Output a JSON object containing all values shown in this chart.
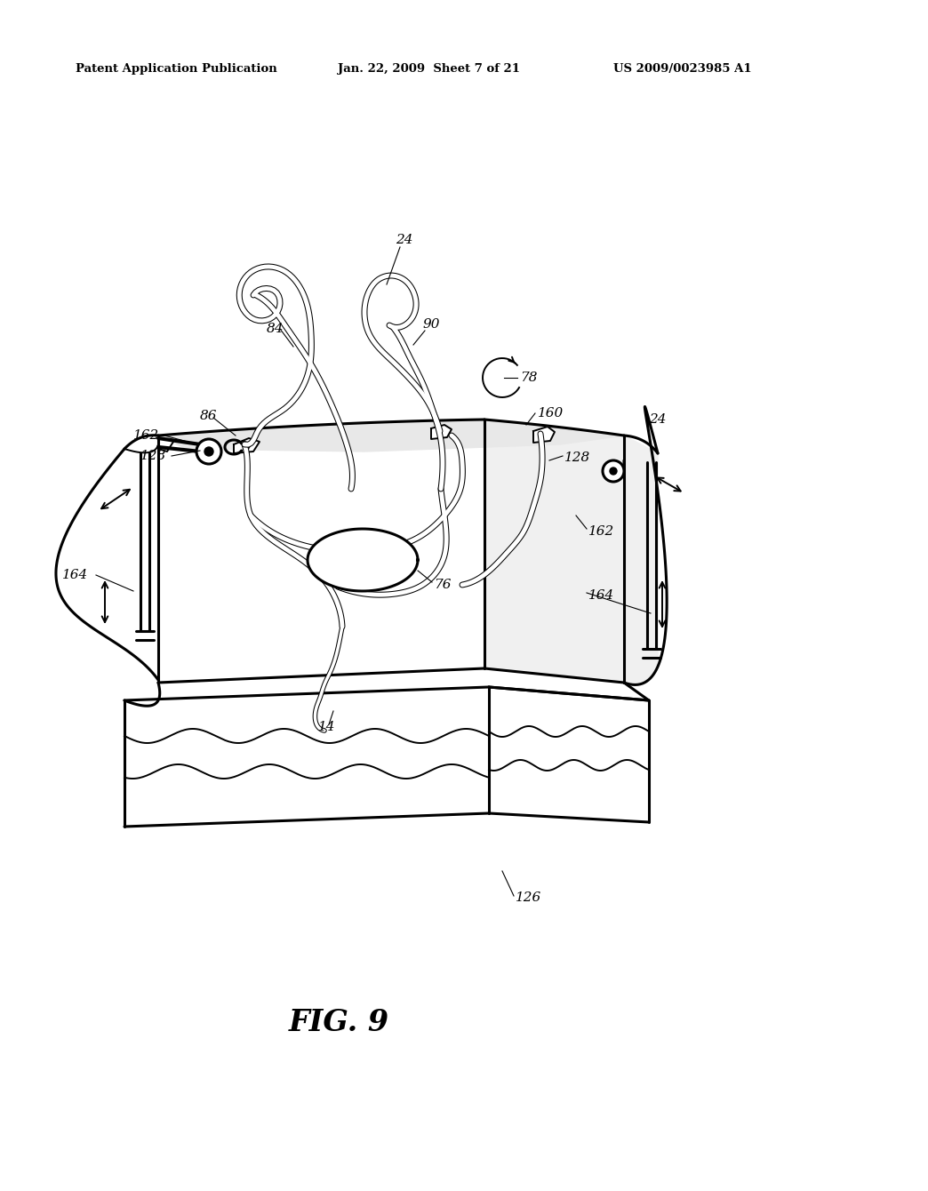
{
  "bg_color": "#ffffff",
  "header_left": "Patent Application Publication",
  "header_mid": "Jan. 22, 2009  Sheet 7 of 21",
  "header_right": "US 2009/0023985 A1",
  "figure_label": "FIG. 9",
  "line_color": "#000000",
  "fig_width": 10.24,
  "fig_height": 13.2,
  "dpi": 100
}
